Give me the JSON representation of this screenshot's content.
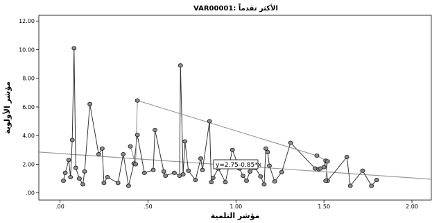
{
  "chart_data": {
    "type": "line",
    "title": "VAR00001: الأكثر تقدماً",
    "xlabel": "مؤشر التلمية",
    "ylabel": "مؤشر الأولوية",
    "xlim": [
      -0.12,
      2.11
    ],
    "ylim": [
      -0.5,
      12.4
    ],
    "xticks": [
      0.0,
      0.5,
      1.0,
      1.5,
      2.0
    ],
    "xtick_labels": [
      ".00",
      ".50",
      "1.00",
      "1.50",
      "2.00"
    ],
    "yticks": [
      0,
      2,
      4,
      6,
      8,
      10,
      12
    ],
    "ytick_labels": [
      ".00",
      "2.00",
      "4.00",
      "6.00",
      "8.00",
      "10.00",
      "12.00"
    ],
    "grid": false,
    "fit_line": {
      "intercept": 2.75,
      "slope": -0.85,
      "label": "y=2.75-0.85*x"
    },
    "series": [
      {
        "x": [
          0.02,
          0.03,
          0.05,
          0.06,
          0.07,
          0.08,
          0.09,
          0.11,
          0.13,
          0.14,
          0.17,
          0.22,
          0.24,
          0.25,
          0.27,
          0.33,
          0.36,
          0.39,
          0.42,
          0.44,
          0.48,
          0.53,
          0.54,
          0.59,
          0.6,
          0.65,
          0.68,
          0.685,
          0.7,
          0.71,
          0.73,
          0.77,
          0.8,
          0.81,
          0.85,
          0.86,
          0.87,
          0.9,
          0.94,
          0.98,
          1.02,
          1.04,
          1.06,
          1.08,
          1.11,
          1.14,
          1.16,
          1.17,
          1.18,
          1.19,
          1.22,
          1.26,
          1.31,
          1.45,
          1.47,
          1.48,
          1.5,
          1.51,
          1.52,
          1.63,
          1.65,
          1.72,
          1.77,
          1.8
        ],
        "y": [
          0.85,
          1.4,
          2.3,
          1.1,
          3.7,
          10.1,
          1.75,
          1.0,
          0.6,
          1.5,
          6.2,
          2.7,
          3.1,
          0.7,
          1.1,
          0.7,
          2.7,
          0.5,
          2.05,
          4.05,
          1.4,
          1.6,
          4.4,
          1.5,
          1.2,
          1.4,
          1.2,
          8.9,
          1.3,
          3.6,
          1.55,
          0.9,
          2.4,
          1.6,
          5.0,
          0.75,
          1.05,
          1.7,
          0.75,
          3.0,
          1.7,
          1.2,
          0.85,
          1.5,
          1.75,
          1.15,
          0.6,
          3.1,
          2.85,
          1.9,
          0.8,
          1.45,
          3.5,
          1.7,
          1.65,
          1.7,
          1.8,
          2.25,
          0.85,
          2.5,
          0.5,
          1.55,
          0.5,
          0.9
        ]
      },
      {
        "x": [
          0.4,
          0.43,
          0.44,
          1.46,
          1.52,
          1.51
        ],
        "y": [
          3.25,
          2.0,
          6.45,
          2.6,
          2.2,
          0.85
        ]
      }
    ]
  }
}
